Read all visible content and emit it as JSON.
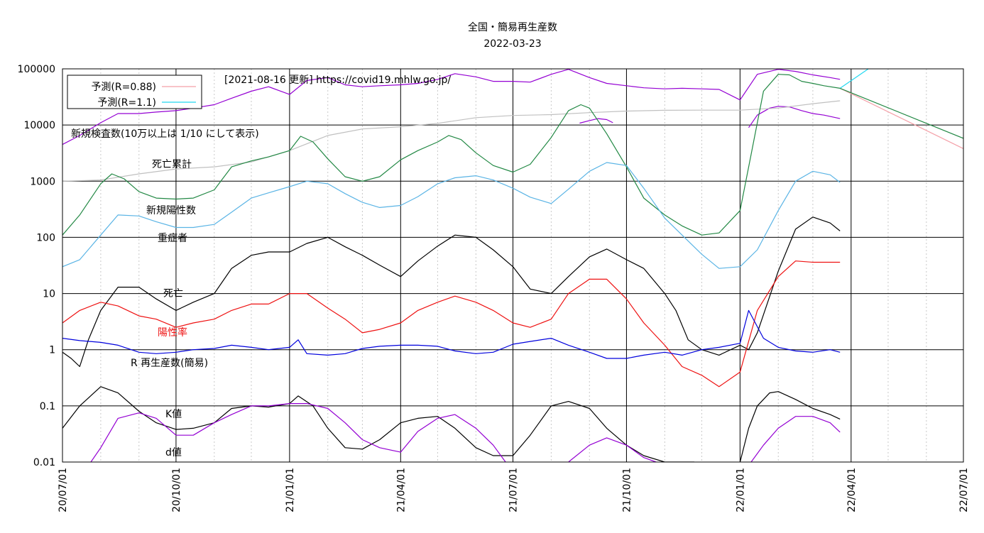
{
  "chart_data": {
    "type": "line",
    "title": "全国・簡易再生産数",
    "subtitle": "2022-03-23",
    "note": "[2021-08-16 更新] https://covid19.mhlw.go.jp/",
    "y_scale": "log",
    "ylim": [
      0.01,
      100000
    ],
    "y_ticks": [
      "100000",
      "10000",
      "1000",
      "100",
      "10",
      "1",
      "0.1",
      "0.01"
    ],
    "x_ticks": [
      "20/07/01",
      "20/10/01",
      "21/01/01",
      "21/04/01",
      "21/07/01",
      "21/10/01",
      "22/01/01",
      "22/04/01",
      "22/07/01"
    ],
    "xlim": [
      "20/07/01",
      "22/07/01"
    ],
    "grid": true,
    "legend": {
      "position": "top-left",
      "entries": [
        {
          "label": "予測(R=0.88)",
          "color": "#f4a0a8"
        },
        {
          "label": "予測(R=1.1)",
          "color": "#22d8f0"
        }
      ]
    },
    "annotations": [
      {
        "text": "新規検査数(10万以上は 1/10 にして表示)",
        "color": "#000000"
      },
      {
        "text": "死亡累計",
        "color": "#000000"
      },
      {
        "text": "新規陽性数",
        "color": "#000000"
      },
      {
        "text": "重症者",
        "color": "#000000"
      },
      {
        "text": "死亡",
        "color": "#000000"
      },
      {
        "text": "陽性率",
        "color": "#ee1111"
      },
      {
        "text": "R  再生産数(簡易)",
        "color": "#000000"
      },
      {
        "text": "K値",
        "color": "#000000"
      },
      {
        "text": "d値",
        "color": "#000000"
      }
    ],
    "series": [
      {
        "name": "新規検査数(10万以上は 1/10 にして表示)",
        "color": "#9400d3",
        "x": [
          "20/07/01",
          "20/07/15",
          "20/08/01",
          "20/08/15",
          "20/09/01",
          "20/09/15",
          "20/10/01",
          "20/10/15",
          "20/11/01",
          "20/11/15",
          "20/12/01",
          "20/12/15",
          "21/01/01",
          "21/01/15",
          "21/02/01",
          "21/02/15",
          "21/03/01",
          "21/03/15",
          "21/04/01",
          "21/04/15",
          "21/05/01",
          "21/05/15",
          "21/06/01",
          "21/06/15",
          "21/07/01",
          "21/07/15",
          "21/08/01",
          "21/08/15",
          "21/09/01",
          "21/09/15",
          "21/10/01",
          "21/10/15",
          "21/11/01",
          "21/11/15",
          "21/12/01",
          "21/12/15",
          "22/01/01",
          "22/01/15",
          "22/02/01",
          "22/02/15",
          "22/03/01",
          "22/03/15",
          "22/03/23"
        ],
        "y": [
          4500,
          6500,
          11000,
          16000,
          16000,
          17000,
          18000,
          20000,
          23000,
          30000,
          40000,
          48000,
          35000,
          62000,
          70000,
          52000,
          48000,
          50000,
          52000,
          55000,
          65000,
          82000,
          72000,
          60000,
          60000,
          58000,
          80000,
          98000,
          70000,
          55000,
          50000,
          46000,
          44000,
          45000,
          44000,
          43000,
          28000,
          80000,
          98000,
          90000,
          78000,
          70000,
          65000
        ]
      },
      {
        "name": "新規検査数(10万以上は 1/10 にして表示)",
        "color": "#9400d3",
        "x": [
          "21/08/24",
          "21/09/01",
          "21/09/08",
          "21/09/15",
          "21/09/20"
        ],
        "y": [
          10800,
          12000,
          13000,
          12500,
          11000
        ]
      },
      {
        "name": "新規検査数(10万以上は 1/10 にして表示)",
        "color": "#9400d3",
        "x": [
          "22/01/08",
          "22/01/15",
          "22/01/25",
          "22/02/01",
          "22/02/10",
          "22/02/20",
          "22/03/01",
          "22/03/10",
          "22/03/23"
        ],
        "y": [
          9000,
          15000,
          20000,
          21500,
          21000,
          18000,
          16000,
          15000,
          13000
        ]
      },
      {
        "name": "死亡累計",
        "color": "#c0c0c0",
        "x": [
          "20/07/01",
          "20/08/01",
          "20/09/01",
          "20/10/01",
          "20/11/01",
          "20/12/01",
          "21/01/01",
          "21/02/01",
          "21/03/01",
          "21/04/01",
          "21/05/01",
          "21/06/01",
          "21/07/01",
          "21/08/01",
          "21/09/01",
          "21/10/01",
          "21/11/01",
          "21/12/01",
          "22/01/01",
          "22/02/01",
          "22/03/01",
          "22/03/23"
        ],
        "y": [
          1000,
          1050,
          1350,
          1650,
          1800,
          2200,
          3500,
          6500,
          8500,
          9300,
          10700,
          13500,
          14800,
          15300,
          16600,
          17700,
          18300,
          18400,
          18400,
          20000,
          24000,
          27000
        ]
      },
      {
        "name": "新規陽性数",
        "color": "#228844",
        "x": [
          "20/07/01",
          "20/07/15",
          "20/08/01",
          "20/08/10",
          "20/08/20",
          "20/09/01",
          "20/09/15",
          "20/10/01",
          "20/10/15",
          "20/11/01",
          "20/11/15",
          "20/12/01",
          "20/12/15",
          "21/01/01",
          "21/01/10",
          "21/01/20",
          "21/02/01",
          "21/02/15",
          "21/03/01",
          "21/03/15",
          "21/04/01",
          "21/04/15",
          "21/05/01",
          "21/05/10",
          "21/05/20",
          "21/06/01",
          "21/06/15",
          "21/07/01",
          "21/07/15",
          "21/08/01",
          "21/08/15",
          "21/08/25",
          "21/09/01",
          "21/09/15",
          "21/10/01",
          "21/10/15",
          "21/11/01",
          "21/11/15",
          "21/12/01",
          "21/12/15",
          "22/01/01",
          "22/01/10",
          "22/01/20",
          "22/02/01",
          "22/02/10",
          "22/02/20",
          "22/03/01",
          "22/03/10",
          "22/03/23"
        ],
        "y": [
          110,
          250,
          900,
          1350,
          1100,
          650,
          500,
          480,
          500,
          700,
          1800,
          2300,
          2700,
          3500,
          6300,
          5000,
          2500,
          1200,
          1000,
          1200,
          2400,
          3500,
          5000,
          6500,
          5500,
          3200,
          1900,
          1450,
          2000,
          6000,
          18000,
          23000,
          20000,
          7000,
          1800,
          500,
          250,
          160,
          110,
          120,
          300,
          3000,
          40000,
          80000,
          78000,
          60000,
          55000,
          50000,
          45000
        ]
      },
      {
        "name": "重症者",
        "color": "#5ab4e5",
        "x": [
          "20/07/01",
          "20/07/15",
          "20/08/01",
          "20/08/15",
          "20/09/01",
          "20/09/15",
          "20/10/01",
          "20/10/15",
          "20/11/01",
          "20/11/15",
          "20/12/01",
          "20/12/15",
          "21/01/01",
          "21/01/15",
          "21/02/01",
          "21/02/15",
          "21/03/01",
          "21/03/15",
          "21/04/01",
          "21/04/15",
          "21/05/01",
          "21/05/15",
          "21/06/01",
          "21/06/15",
          "21/07/01",
          "21/07/15",
          "21/08/01",
          "21/08/15",
          "21/09/01",
          "21/09/15",
          "21/10/01",
          "21/10/15",
          "21/11/01",
          "21/11/15",
          "21/12/01",
          "21/12/15",
          "22/01/01",
          "22/01/15",
          "22/02/01",
          "22/02/15",
          "22/03/01",
          "22/03/15",
          "22/03/23"
        ],
        "y": [
          30,
          40,
          110,
          250,
          240,
          190,
          150,
          150,
          170,
          280,
          500,
          620,
          800,
          1000,
          900,
          600,
          420,
          340,
          370,
          530,
          900,
          1150,
          1250,
          1050,
          750,
          520,
          400,
          720,
          1500,
          2150,
          1900,
          750,
          220,
          110,
          50,
          28,
          30,
          60,
          300,
          1000,
          1500,
          1300,
          950
        ]
      },
      {
        "name": "死亡",
        "color": "#000000",
        "x": [
          "20/07/01",
          "20/07/08",
          "20/07/15",
          "20/07/22",
          "20/08/01",
          "20/08/15",
          "20/09/01",
          "20/09/15",
          "20/10/01",
          "20/10/15",
          "20/11/01",
          "20/11/15",
          "20/12/01",
          "20/12/15",
          "21/01/01",
          "21/01/15",
          "21/02/01",
          "21/02/15",
          "21/03/01",
          "21/03/15",
          "21/04/01",
          "21/04/15",
          "21/05/01",
          "21/05/15",
          "21/06/01",
          "21/06/15",
          "21/07/01",
          "21/07/15",
          "21/08/01",
          "21/08/15",
          "21/09/01",
          "21/09/15",
          "21/10/01",
          "21/10/15",
          "21/11/01",
          "21/11/10",
          "21/11/20",
          "21/12/01",
          "21/12/15",
          "22/01/01",
          "22/01/08",
          "22/01/15",
          "22/02/01",
          "22/02/15",
          "22/03/01",
          "22/03/15",
          "22/03/23"
        ],
        "y": [
          0.9,
          0.7,
          0.5,
          1.5,
          5,
          13,
          13,
          8,
          5,
          7,
          10,
          28,
          48,
          55,
          55,
          78,
          100,
          68,
          48,
          32,
          20,
          38,
          70,
          110,
          100,
          60,
          30,
          12,
          10,
          20,
          45,
          62,
          40,
          28,
          10,
          5,
          1.5,
          1,
          0.8,
          1.2,
          1,
          2,
          25,
          140,
          230,
          180,
          130
        ]
      },
      {
        "name": "陽性率",
        "color": "#ee1111",
        "x": [
          "20/07/01",
          "20/07/15",
          "20/08/01",
          "20/08/15",
          "20/09/01",
          "20/09/15",
          "20/10/01",
          "20/10/15",
          "20/11/01",
          "20/11/15",
          "20/12/01",
          "20/12/15",
          "21/01/01",
          "21/01/15",
          "21/02/01",
          "21/02/15",
          "21/03/01",
          "21/03/15",
          "21/04/01",
          "21/04/15",
          "21/05/01",
          "21/05/15",
          "21/06/01",
          "21/06/15",
          "21/07/01",
          "21/07/15",
          "21/08/01",
          "21/08/15",
          "21/09/01",
          "21/09/15",
          "21/10/01",
          "21/10/15",
          "21/11/01",
          "21/11/15",
          "21/12/01",
          "21/12/15",
          "22/01/01",
          "22/01/15",
          "22/02/01",
          "22/02/15",
          "22/03/01",
          "22/03/15",
          "22/03/23"
        ],
        "y": [
          3,
          5,
          7,
          6,
          4,
          3.5,
          2.5,
          3,
          3.5,
          5,
          6.5,
          6.5,
          10,
          10,
          5.5,
          3.5,
          2,
          2.3,
          3,
          5,
          7,
          9,
          7,
          5,
          3,
          2.5,
          3.5,
          10,
          18,
          18,
          8,
          3,
          1.2,
          0.5,
          0.35,
          0.22,
          0.4,
          5,
          20,
          38,
          36,
          36,
          36
        ]
      },
      {
        "name": "R  再生産数(簡易)",
        "color": "#0000dd",
        "x": [
          "20/07/01",
          "20/07/15",
          "20/08/01",
          "20/08/15",
          "20/09/01",
          "20/09/15",
          "20/10/01",
          "20/10/15",
          "20/11/01",
          "20/11/15",
          "20/12/01",
          "20/12/15",
          "21/01/01",
          "21/01/08",
          "21/01/15",
          "21/02/01",
          "21/02/15",
          "21/03/01",
          "21/03/15",
          "21/04/01",
          "21/04/15",
          "21/05/01",
          "21/05/15",
          "21/06/01",
          "21/06/15",
          "21/07/01",
          "21/07/15",
          "21/08/01",
          "21/08/15",
          "21/09/01",
          "21/09/15",
          "21/10/01",
          "21/10/15",
          "21/11/01",
          "21/11/15",
          "21/12/01",
          "21/12/15",
          "22/01/01",
          "22/01/08",
          "22/01/20",
          "22/02/01",
          "22/02/15",
          "22/03/01",
          "22/03/15",
          "22/03/23"
        ],
        "y": [
          1.6,
          1.45,
          1.35,
          1.2,
          0.9,
          0.85,
          0.9,
          1,
          1.05,
          1.2,
          1.1,
          1,
          1.1,
          1.5,
          0.85,
          0.8,
          0.85,
          1.05,
          1.15,
          1.2,
          1.2,
          1.15,
          0.95,
          0.85,
          0.9,
          1.25,
          1.4,
          1.6,
          1.2,
          0.9,
          0.7,
          0.7,
          0.8,
          0.9,
          0.8,
          1,
          1.1,
          1.3,
          5,
          1.6,
          1.1,
          0.95,
          0.9,
          1.0,
          0.9
        ]
      },
      {
        "name": "K値",
        "color": "#000000",
        "x": [
          "20/07/01",
          "20/07/15",
          "20/08/01",
          "20/08/15",
          "20/09/01",
          "20/09/15",
          "20/10/01",
          "20/10/15",
          "20/11/01",
          "20/11/15",
          "20/12/01",
          "20/12/15",
          "21/01/01",
          "21/01/08",
          "21/01/20",
          "21/02/01",
          "21/02/15",
          "21/03/01",
          "21/03/15",
          "21/04/01",
          "21/04/15",
          "21/05/01",
          "21/05/15",
          "21/06/01",
          "21/06/15",
          "21/07/01",
          "21/07/15",
          "21/08/01",
          "21/08/15",
          "21/09/01",
          "21/09/15",
          "21/10/01",
          "21/10/15",
          "21/11/01",
          "21/11/15",
          "21/11/25"
        ],
        "y": [
          0.04,
          0.1,
          0.22,
          0.17,
          0.08,
          0.05,
          0.038,
          0.04,
          0.05,
          0.09,
          0.1,
          0.095,
          0.11,
          0.15,
          0.1,
          0.04,
          0.018,
          0.017,
          0.025,
          0.05,
          0.06,
          0.065,
          0.04,
          0.018,
          0.013,
          0.013,
          0.03,
          0.1,
          0.12,
          0.09,
          0.04,
          0.02,
          0.013,
          0.01,
          0.01,
          0.01
        ]
      },
      {
        "name": "K値",
        "color": "#000000",
        "x": [
          "22/01/01",
          "22/01/08",
          "22/01/15",
          "22/01/25",
          "22/02/01",
          "22/02/15",
          "22/03/01",
          "22/03/15",
          "22/03/23"
        ],
        "y": [
          0.01,
          0.04,
          0.1,
          0.17,
          0.18,
          0.13,
          0.09,
          0.07,
          0.058
        ]
      },
      {
        "name": "d値",
        "color": "#9400d3",
        "x": [
          "20/07/24",
          "20/08/01",
          "20/08/15",
          "20/09/01",
          "20/09/15",
          "20/10/01",
          "20/10/15",
          "20/11/01",
          "20/11/15",
          "20/12/01",
          "20/12/15",
          "21/01/01",
          "21/01/15",
          "21/02/01",
          "21/02/15",
          "21/03/01",
          "21/03/15",
          "21/04/01",
          "21/04/15",
          "21/05/01",
          "21/05/15",
          "21/06/01",
          "21/06/15",
          "21/06/25"
        ],
        "y": [
          0.01,
          0.018,
          0.06,
          0.075,
          0.06,
          0.03,
          0.03,
          0.05,
          0.07,
          0.1,
          0.1,
          0.11,
          0.11,
          0.09,
          0.05,
          0.025,
          0.018,
          0.015,
          0.035,
          0.06,
          0.07,
          0.04,
          0.02,
          0.01
        ]
      },
      {
        "name": "d値",
        "color": "#9400d3",
        "x": [
          "21/08/15",
          "21/09/01",
          "21/09/15",
          "21/10/01",
          "21/10/15",
          "21/10/25"
        ],
        "y": [
          0.01,
          0.02,
          0.027,
          0.02,
          0.012,
          0.01
        ]
      },
      {
        "name": "d値",
        "color": "#9400d3",
        "x": [
          "22/01/10",
          "22/01/20",
          "22/02/01",
          "22/02/15",
          "22/03/01",
          "22/03/15",
          "22/03/23"
        ],
        "y": [
          0.01,
          0.02,
          0.04,
          0.065,
          0.065,
          0.05,
          0.034
        ]
      },
      {
        "name": "予測(R=0.88)",
        "color": "#f4a0a8",
        "x": [
          "22/03/23",
          "22/07/01"
        ],
        "y": [
          45000,
          3800
        ]
      },
      {
        "name": "予測(R=1.1)",
        "color": "#22d8f0",
        "x": [
          "22/03/23",
          "22/04/15"
        ],
        "y": [
          45000,
          100000
        ]
      },
      {
        "name": "新規陽性数",
        "color": "#228844",
        "x": [
          "22/03/23",
          "22/07/01"
        ],
        "y": [
          45000,
          5800
        ]
      }
    ]
  }
}
